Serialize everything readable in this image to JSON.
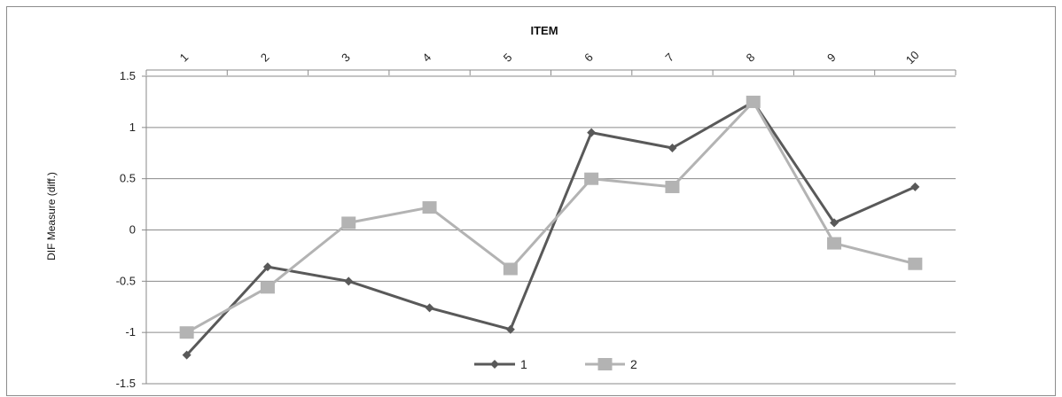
{
  "chart_data": {
    "type": "line",
    "title": "",
    "xlabel": "ITEM",
    "ylabel": "DIF Measure (diff.)",
    "categories": [
      "1",
      "2",
      "3",
      "4",
      "5",
      "6",
      "7",
      "8",
      "9",
      "10"
    ],
    "y_tick_labels": [
      "1.5",
      "1",
      "0.5",
      "0",
      "-0.5",
      "-1",
      "-1.5"
    ],
    "y_tick_values": [
      1.5,
      1,
      0.5,
      0,
      -0.5,
      -1,
      -1.5
    ],
    "ylim": [
      -1.5,
      1.5
    ],
    "x_axis_position": "top",
    "grid": "horizontal",
    "legend_position": "bottom-center",
    "series": [
      {
        "name": "1",
        "color": "#595959",
        "marker": "diamond",
        "values": [
          -1.22,
          -0.36,
          -0.5,
          -0.76,
          -0.97,
          0.95,
          0.8,
          1.25,
          0.07,
          0.42
        ]
      },
      {
        "name": "2",
        "color": "#b3b3b3",
        "marker": "square",
        "values": [
          -1.0,
          -0.56,
          0.07,
          0.22,
          -0.38,
          0.5,
          0.42,
          1.25,
          -0.13,
          -0.33
        ]
      }
    ]
  }
}
